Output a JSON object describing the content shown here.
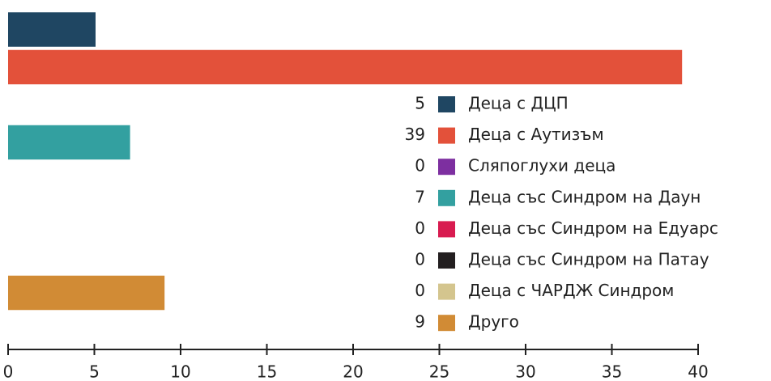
{
  "chart_data": {
    "type": "bar",
    "orientation": "horizontal",
    "categories": [
      "Деца с ДЦП",
      "Деца с Аутизъм",
      "Сляпоглухи деца",
      "Деца със Синдром на Даун",
      "Деца със Синдром на Едуарс",
      "Деца със Синдром на Патау",
      "Деца с ЧАРДЖ Синдром",
      "Друго"
    ],
    "values": [
      5,
      39,
      0,
      7,
      0,
      0,
      0,
      9
    ],
    "colors": [
      "#1f4662",
      "#e3513a",
      "#7d2fa0",
      "#33a0a0",
      "#d81b50",
      "#231f20",
      "#d4c58e",
      "#d18b35"
    ],
    "xlim": [
      0,
      40
    ],
    "xticks": [
      0,
      5,
      10,
      15,
      20,
      25,
      30,
      35,
      40
    ]
  }
}
